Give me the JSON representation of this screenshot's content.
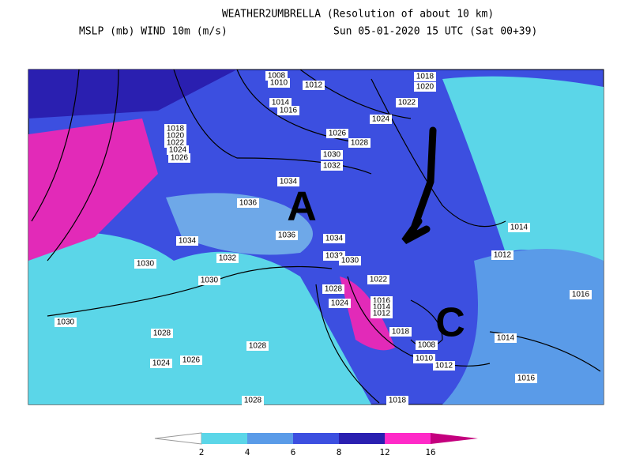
{
  "header": {
    "title": "WEATHER2UMBRELLA (Resolution of about 10 km)",
    "fields": "MSLP (mb)  WIND 10m (m/s)",
    "date": "Sun 05-01-2020 15 UTC (Sat 00+39)"
  },
  "map": {
    "isobar_labels": [
      "1008",
      "1010",
      "1012",
      "1014",
      "1016",
      "1018",
      "1020",
      "1022",
      "1024",
      "1026",
      "1028",
      "1018",
      "1020",
      "1022",
      "1024",
      "1026",
      "1030",
      "1032",
      "1034",
      "1036",
      "1034",
      "1036",
      "1034",
      "1032",
      "1032",
      "1030",
      "1030",
      "1030",
      "1022",
      "1028",
      "1024",
      "1016",
      "1014",
      "1012",
      "1030",
      "1028",
      "1018",
      "1008",
      "1028",
      "1026",
      "1024",
      "1010",
      "1012",
      "1014",
      "1016",
      "1016",
      "1018",
      "1028",
      "1014",
      "1012"
    ],
    "annotations": [
      "A",
      "C"
    ]
  },
  "legend": {
    "ticks": [
      "2",
      "4",
      "6",
      "8",
      "12",
      "16"
    ]
  }
}
